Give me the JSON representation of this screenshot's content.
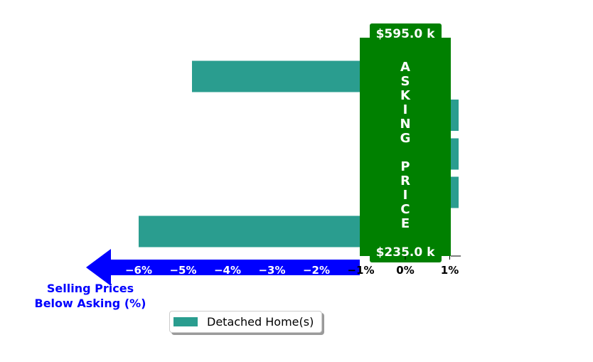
{
  "chart_data": {
    "type": "bar",
    "orientation": "horizontal",
    "title": "",
    "xlabel": "Selling Prices\nBelow Asking (%)",
    "ylabel": "",
    "xlim": [
      -6.88,
      1.25
    ],
    "xticks": [
      -6,
      -5,
      -4,
      -3,
      -2,
      -1,
      0,
      1
    ],
    "xtick_labels": [
      "−6%",
      "−5%",
      "−4%",
      "−3%",
      "−2%",
      "−1%",
      "0%",
      "1%"
    ],
    "grid": false,
    "series": [
      {
        "name": "Detached Home(s)",
        "color": "#2a9d8f",
        "values": [
          -4.8,
          1.2,
          1.2,
          1.2,
          -6.0
        ]
      }
    ],
    "asking_price_band": {
      "text": "ASKING PRICE",
      "top_label": "$595.0 k",
      "bottom_label": "$235.0 k",
      "color": "#008000"
    },
    "arrow_color": "#0000ff",
    "legend_position": "bottom-center"
  },
  "legend": {
    "items": [
      {
        "label": "Detached Home(s)",
        "color": "#2a9d8f"
      }
    ]
  }
}
